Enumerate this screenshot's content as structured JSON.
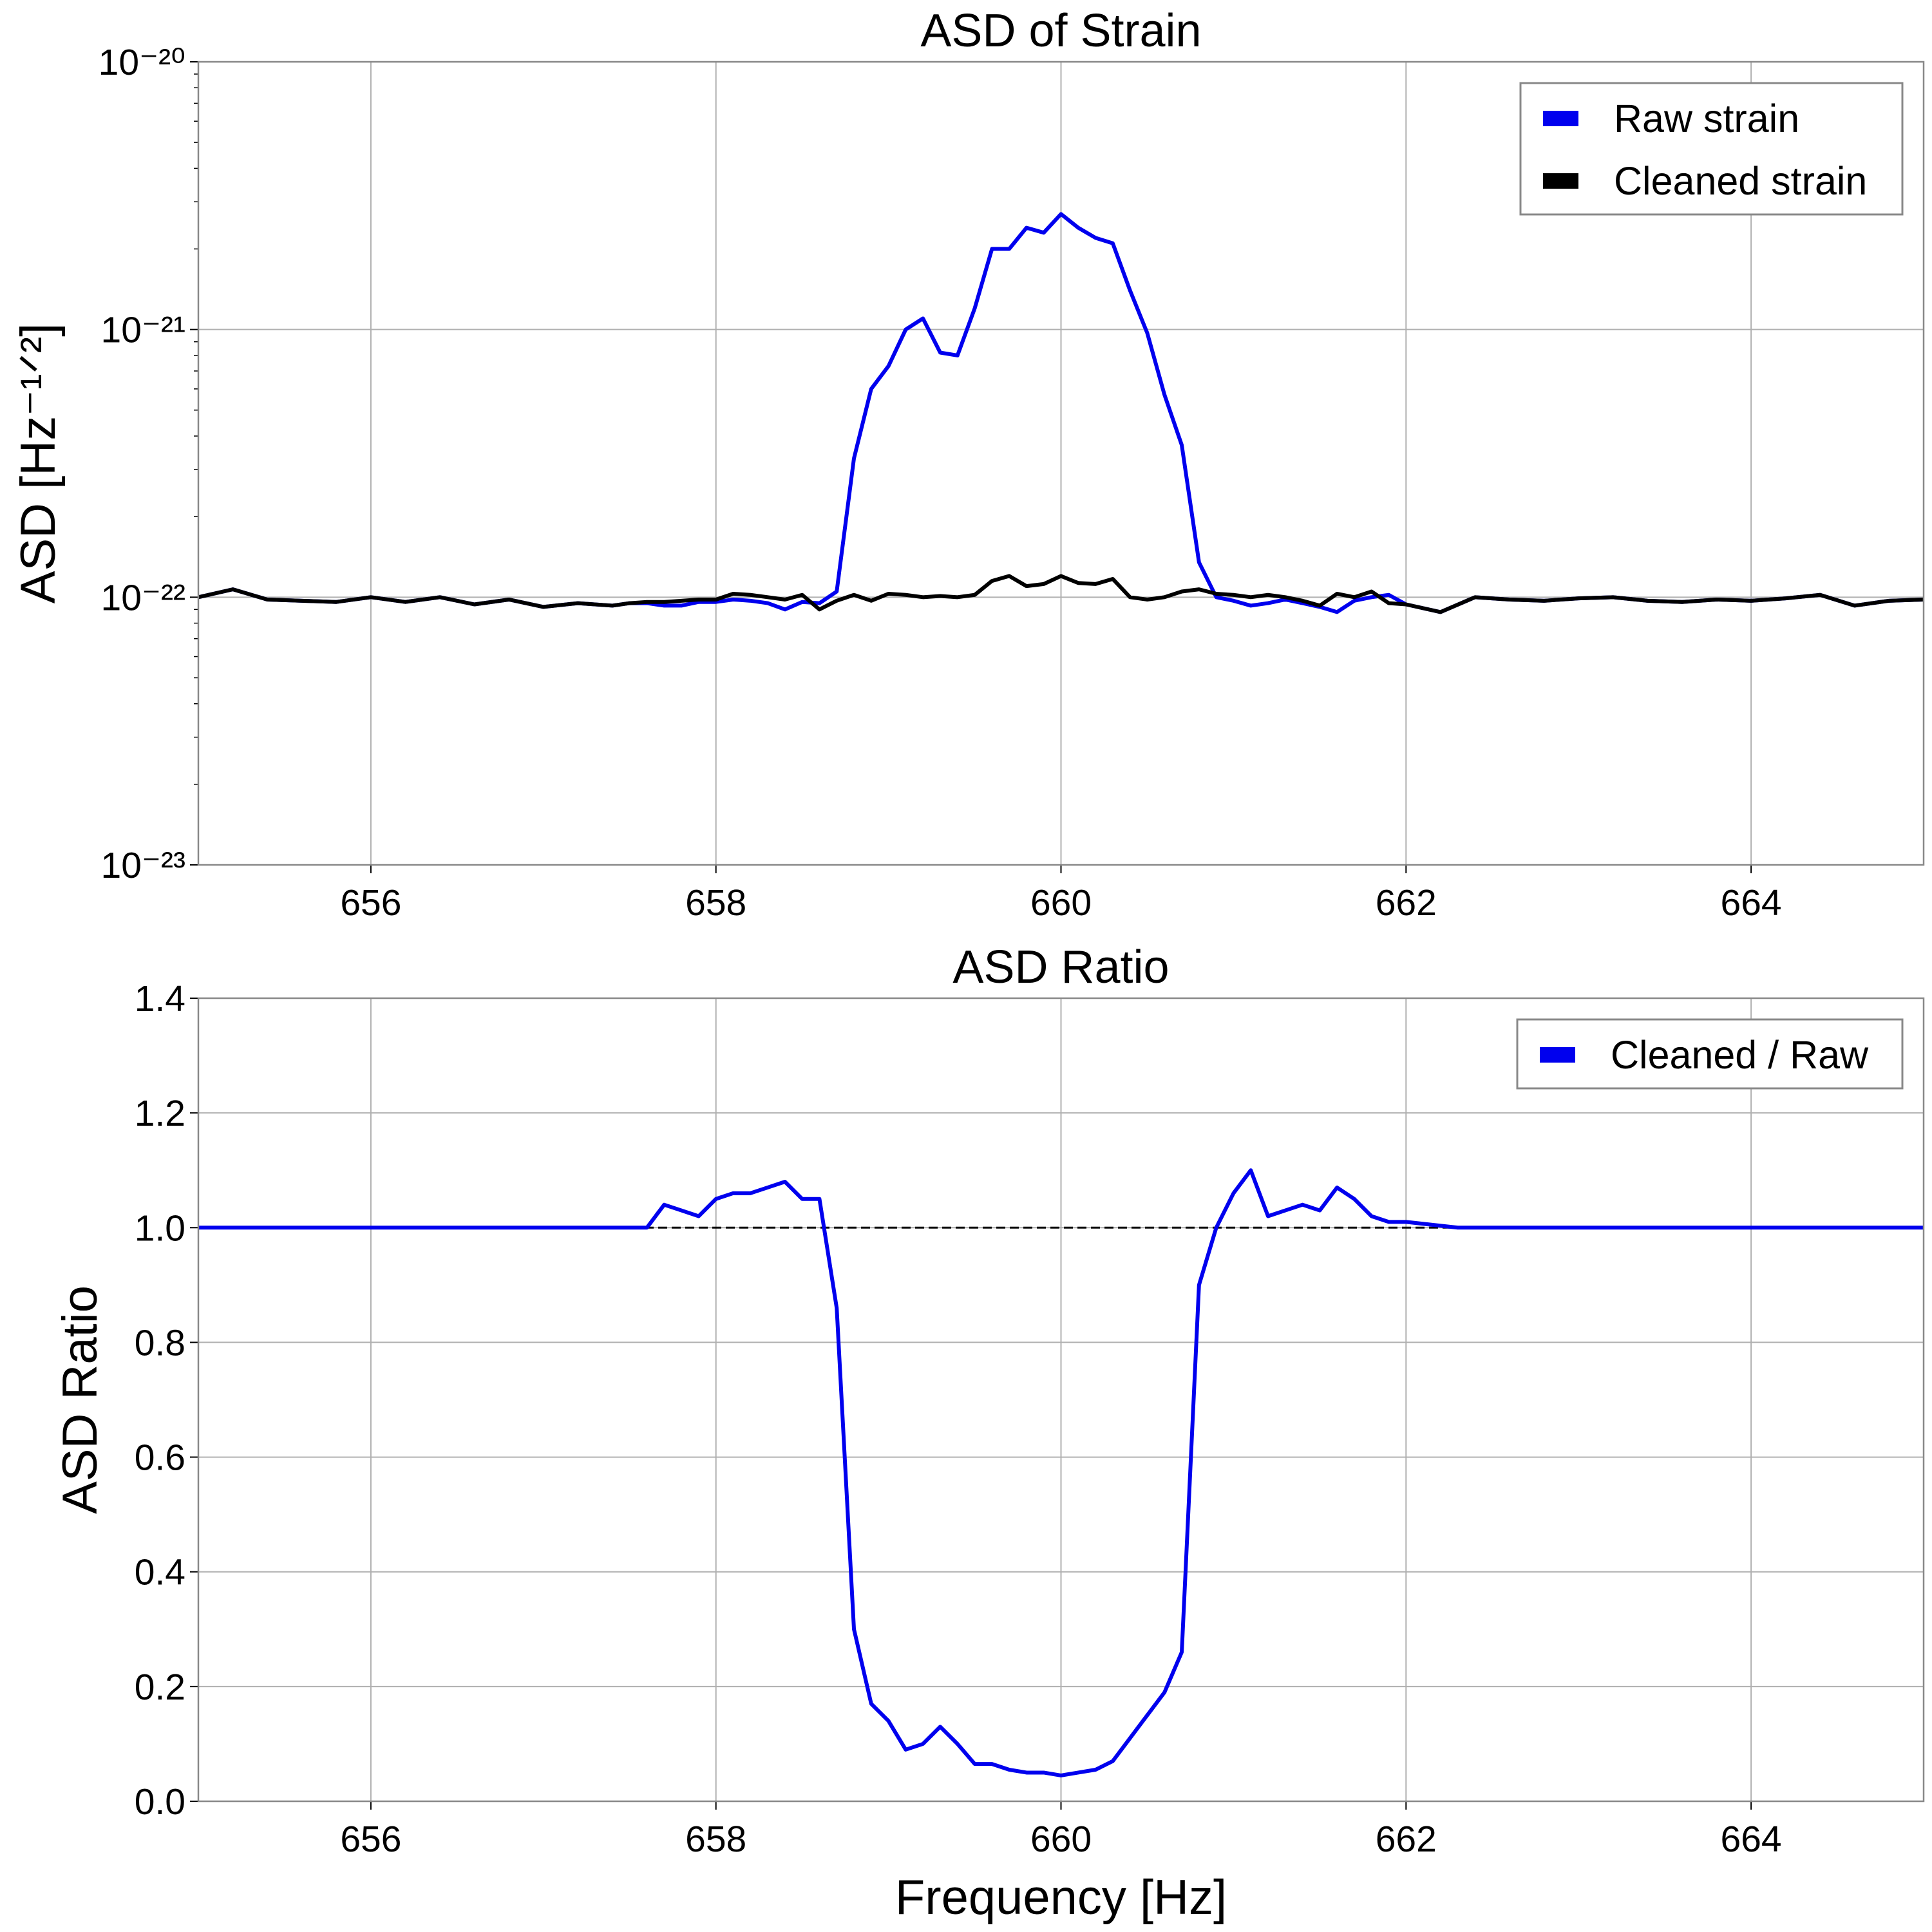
{
  "chart_data": [
    {
      "type": "line",
      "title": "ASD of Strain",
      "ylabel": "ASD [Hz⁻¹ᐟ²]",
      "yscale": "log",
      "grid": true,
      "legend": "upper right",
      "xlim": [
        655,
        665
      ],
      "xticks": [
        656,
        658,
        660,
        662,
        664
      ],
      "ylim": [
        1e-23,
        1e-20
      ],
      "yticks": [
        {
          "value": 1e-23,
          "label": "10⁻²³"
        },
        {
          "value": 1e-22,
          "label": "10⁻²²"
        },
        {
          "value": 1e-21,
          "label": "10⁻²¹"
        },
        {
          "value": 1e-20,
          "label": "10⁻²⁰"
        }
      ],
      "x": [
        655,
        655.2,
        655.4,
        655.6,
        655.8,
        656,
        656.2,
        656.4,
        656.6,
        656.8,
        657,
        657.2,
        657.4,
        657.5,
        657.6,
        657.7,
        657.8,
        657.9,
        658,
        658.1,
        658.2,
        658.3,
        658.4,
        658.5,
        658.6,
        658.7,
        658.8,
        658.9,
        659,
        659.1,
        659.2,
        659.3,
        659.4,
        659.5,
        659.6,
        659.7,
        659.8,
        659.9,
        660,
        660.1,
        660.2,
        660.3,
        660.4,
        660.5,
        660.6,
        660.7,
        660.8,
        660.9,
        661,
        661.1,
        661.2,
        661.3,
        661.4,
        661.5,
        661.6,
        661.7,
        661.8,
        661.9,
        662,
        662.2,
        662.4,
        662.6,
        662.8,
        663,
        663.2,
        663.4,
        663.6,
        663.8,
        664,
        664.2,
        664.4,
        664.6,
        664.8,
        665
      ],
      "series": [
        {
          "name": "Raw strain",
          "color": "#0000ee",
          "values": [
            1e-22,
            1.07e-22,
            9.8e-23,
            9.7e-23,
            9.6e-23,
            1e-22,
            9.6e-23,
            1e-22,
            9.4e-23,
            9.8e-23,
            9.2e-23,
            9.5e-23,
            9.3e-23,
            9.5e-23,
            9.5e-23,
            9.3e-23,
            9.3e-23,
            9.6e-23,
            9.6e-23,
            9.8e-23,
            9.7e-23,
            9.5e-23,
            9e-23,
            9.6e-23,
            9.5e-23,
            1.05e-22,
            3.3e-22,
            6e-22,
            7.3e-22,
            1e-21,
            1.1e-21,
            8.2e-22,
            8e-22,
            1.2e-21,
            2e-21,
            2e-21,
            2.4e-21,
            2.3e-21,
            2.7e-21,
            2.4e-21,
            2.2e-21,
            2.1e-21,
            1.4e-21,
            9.7e-22,
            5.7e-22,
            3.7e-22,
            1.35e-22,
            1e-22,
            9.7e-23,
            9.3e-23,
            9.5e-23,
            9.8e-23,
            9.5e-23,
            9.2e-23,
            8.8e-23,
            9.7e-23,
            1e-22,
            1.02e-22,
            9.4e-23,
            8.8e-23,
            1e-22,
            9.8e-23,
            9.7e-23,
            9.9e-23,
            1e-22,
            9.7e-23,
            9.6e-23,
            9.8e-23,
            9.7e-23,
            9.9e-23,
            1.02e-22,
            9.3e-23,
            9.7e-23,
            9.8e-23
          ]
        },
        {
          "name": "Cleaned strain",
          "color": "#000000",
          "values": [
            1e-22,
            1.07e-22,
            9.8e-23,
            9.7e-23,
            9.6e-23,
            1e-22,
            9.6e-23,
            1e-22,
            9.4e-23,
            9.8e-23,
            9.2e-23,
            9.5e-23,
            9.3e-23,
            9.5e-23,
            9.6e-23,
            9.6e-23,
            9.7e-23,
            9.8e-23,
            9.8e-23,
            1.03e-22,
            1.02e-22,
            1e-22,
            9.8e-23,
            1.02e-22,
            9e-23,
            9.7e-23,
            1.02e-22,
            9.7e-23,
            1.03e-22,
            1.02e-22,
            1e-22,
            1.01e-22,
            1e-22,
            1.02e-22,
            1.15e-22,
            1.2e-22,
            1.1e-22,
            1.12e-22,
            1.2e-22,
            1.13e-22,
            1.12e-22,
            1.17e-22,
            1e-22,
            9.8e-23,
            1e-22,
            1.05e-22,
            1.07e-22,
            1.03e-22,
            1.02e-22,
            1e-22,
            1.02e-22,
            1e-22,
            9.7e-23,
            9.3e-23,
            1.03e-22,
            1e-22,
            1.05e-22,
            9.5e-23,
            9.4e-23,
            8.8e-23,
            1e-22,
            9.8e-23,
            9.7e-23,
            9.9e-23,
            1e-22,
            9.7e-23,
            9.6e-23,
            9.8e-23,
            9.7e-23,
            9.9e-23,
            1.02e-22,
            9.3e-23,
            9.7e-23,
            9.8e-23
          ]
        }
      ]
    },
    {
      "type": "line",
      "title": "ASD Ratio",
      "xlabel": "Frequency [Hz]",
      "ylabel": "ASD Ratio",
      "grid": true,
      "legend": "upper right",
      "xlim": [
        655,
        665
      ],
      "xticks": [
        656,
        658,
        660,
        662,
        664
      ],
      "ylim": [
        0,
        1.4
      ],
      "yticks": [
        {
          "value": 0,
          "label": "0.0"
        },
        0.2,
        0.4,
        0.6,
        0.8,
        {
          "value": 1,
          "label": "1.0"
        },
        1.2,
        1.4
      ],
      "reference_line": {
        "value": 1,
        "color": "#000000",
        "style": "dashed"
      },
      "x": [
        655,
        657.5,
        657.6,
        657.7,
        657.8,
        657.9,
        658,
        658.1,
        658.2,
        658.3,
        658.4,
        658.5,
        658.6,
        658.7,
        658.8,
        658.9,
        659,
        659.1,
        659.2,
        659.3,
        659.4,
        659.5,
        659.6,
        659.7,
        659.8,
        659.9,
        660,
        660.1,
        660.2,
        660.3,
        660.4,
        660.5,
        660.6,
        660.7,
        660.8,
        660.9,
        661,
        661.1,
        661.2,
        661.3,
        661.4,
        661.5,
        661.6,
        661.7,
        661.8,
        661.9,
        662,
        662.3,
        665
      ],
      "series": [
        {
          "name": "Cleaned / Raw",
          "color": "#0000ee",
          "values": [
            1.0,
            1.0,
            1.0,
            1.04,
            1.03,
            1.02,
            1.05,
            1.06,
            1.06,
            1.07,
            1.08,
            1.05,
            1.05,
            0.86,
            0.3,
            0.17,
            0.14,
            0.09,
            0.1,
            0.13,
            0.1,
            0.065,
            0.065,
            0.055,
            0.05,
            0.05,
            0.045,
            0.05,
            0.055,
            0.07,
            0.11,
            0.15,
            0.19,
            0.26,
            0.9,
            1.0,
            1.06,
            1.1,
            1.02,
            1.03,
            1.04,
            1.03,
            1.07,
            1.05,
            1.02,
            1.01,
            1.01,
            1.0,
            1.0
          ]
        }
      ]
    }
  ]
}
